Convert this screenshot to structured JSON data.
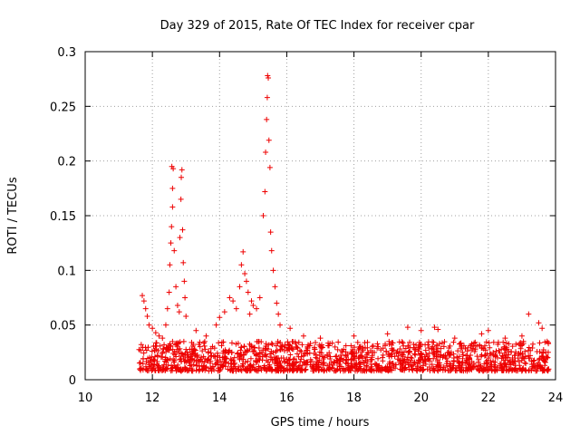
{
  "chart_data": {
    "type": "scatter",
    "title": "Day 329 of 2015, Rate Of TEC Index for receiver cpar",
    "xlabel": "GPS time / hours",
    "ylabel": "ROTI / TECUs",
    "xlim": [
      10,
      24
    ],
    "ylim": [
      0,
      0.3
    ],
    "xticks": [
      10,
      12,
      14,
      16,
      18,
      20,
      22,
      24
    ],
    "xtick_labels": [
      "10",
      "12",
      "14",
      "16",
      "18",
      "20",
      "22",
      "24"
    ],
    "yticks": [
      0,
      0.05,
      0.1,
      0.15,
      0.2,
      0.25,
      0.3
    ],
    "ytick_labels": [
      "0",
      "0.05",
      "0.1",
      "0.15",
      "0.2",
      "0.25",
      "0.3"
    ],
    "grid": true,
    "marker": "plus",
    "color": "#ee0000",
    "series": [
      {
        "name": "ROTI",
        "x_range": [
          11.6,
          23.8
        ],
        "baseline_band": [
          0.008,
          0.035
        ],
        "notable_points": [
          {
            "x": 11.7,
            "y": 0.077
          },
          {
            "x": 11.75,
            "y": 0.072
          },
          {
            "x": 11.8,
            "y": 0.065
          },
          {
            "x": 11.85,
            "y": 0.058
          },
          {
            "x": 11.9,
            "y": 0.05
          },
          {
            "x": 12.0,
            "y": 0.047
          },
          {
            "x": 12.1,
            "y": 0.043
          },
          {
            "x": 12.2,
            "y": 0.04
          },
          {
            "x": 12.3,
            "y": 0.038
          },
          {
            "x": 12.4,
            "y": 0.05
          },
          {
            "x": 12.45,
            "y": 0.065
          },
          {
            "x": 12.5,
            "y": 0.08
          },
          {
            "x": 12.52,
            "y": 0.105
          },
          {
            "x": 12.55,
            "y": 0.125
          },
          {
            "x": 12.57,
            "y": 0.14
          },
          {
            "x": 12.6,
            "y": 0.158
          },
          {
            "x": 12.6,
            "y": 0.175
          },
          {
            "x": 12.58,
            "y": 0.195
          },
          {
            "x": 12.62,
            "y": 0.193
          },
          {
            "x": 12.65,
            "y": 0.118
          },
          {
            "x": 12.7,
            "y": 0.085
          },
          {
            "x": 12.75,
            "y": 0.068
          },
          {
            "x": 12.8,
            "y": 0.062
          },
          {
            "x": 12.82,
            "y": 0.13
          },
          {
            "x": 12.85,
            "y": 0.165
          },
          {
            "x": 12.86,
            "y": 0.185
          },
          {
            "x": 12.88,
            "y": 0.192
          },
          {
            "x": 12.9,
            "y": 0.137
          },
          {
            "x": 12.92,
            "y": 0.107
          },
          {
            "x": 12.95,
            "y": 0.09
          },
          {
            "x": 12.97,
            "y": 0.075
          },
          {
            "x": 13.0,
            "y": 0.058
          },
          {
            "x": 13.3,
            "y": 0.045
          },
          {
            "x": 13.6,
            "y": 0.04
          },
          {
            "x": 13.9,
            "y": 0.05
          },
          {
            "x": 14.0,
            "y": 0.057
          },
          {
            "x": 14.15,
            "y": 0.062
          },
          {
            "x": 14.3,
            "y": 0.075
          },
          {
            "x": 14.4,
            "y": 0.072
          },
          {
            "x": 14.5,
            "y": 0.065
          },
          {
            "x": 14.6,
            "y": 0.085
          },
          {
            "x": 14.65,
            "y": 0.105
          },
          {
            "x": 14.7,
            "y": 0.117
          },
          {
            "x": 14.75,
            "y": 0.097
          },
          {
            "x": 14.8,
            "y": 0.09
          },
          {
            "x": 14.85,
            "y": 0.08
          },
          {
            "x": 14.9,
            "y": 0.06
          },
          {
            "x": 14.95,
            "y": 0.072
          },
          {
            "x": 15.0,
            "y": 0.068
          },
          {
            "x": 15.1,
            "y": 0.065
          },
          {
            "x": 15.2,
            "y": 0.075
          },
          {
            "x": 15.3,
            "y": 0.15
          },
          {
            "x": 15.35,
            "y": 0.172
          },
          {
            "x": 15.37,
            "y": 0.208
          },
          {
            "x": 15.4,
            "y": 0.238
          },
          {
            "x": 15.42,
            "y": 0.258
          },
          {
            "x": 15.43,
            "y": 0.278
          },
          {
            "x": 15.45,
            "y": 0.276
          },
          {
            "x": 15.47,
            "y": 0.219
          },
          {
            "x": 15.5,
            "y": 0.194
          },
          {
            "x": 15.52,
            "y": 0.135
          },
          {
            "x": 15.55,
            "y": 0.118
          },
          {
            "x": 15.6,
            "y": 0.1
          },
          {
            "x": 15.65,
            "y": 0.085
          },
          {
            "x": 15.7,
            "y": 0.07
          },
          {
            "x": 15.75,
            "y": 0.06
          },
          {
            "x": 15.8,
            "y": 0.05
          },
          {
            "x": 16.1,
            "y": 0.047
          },
          {
            "x": 16.5,
            "y": 0.04
          },
          {
            "x": 17.0,
            "y": 0.038
          },
          {
            "x": 18.0,
            "y": 0.04
          },
          {
            "x": 19.0,
            "y": 0.042
          },
          {
            "x": 19.6,
            "y": 0.048
          },
          {
            "x": 20.0,
            "y": 0.045
          },
          {
            "x": 20.4,
            "y": 0.048
          },
          {
            "x": 20.5,
            "y": 0.046
          },
          {
            "x": 21.0,
            "y": 0.038
          },
          {
            "x": 21.8,
            "y": 0.042
          },
          {
            "x": 22.0,
            "y": 0.045
          },
          {
            "x": 22.5,
            "y": 0.038
          },
          {
            "x": 23.0,
            "y": 0.04
          },
          {
            "x": 23.2,
            "y": 0.06
          },
          {
            "x": 23.5,
            "y": 0.052
          },
          {
            "x": 23.6,
            "y": 0.047
          },
          {
            "x": 23.75,
            "y": 0.035
          }
        ]
      }
    ]
  }
}
